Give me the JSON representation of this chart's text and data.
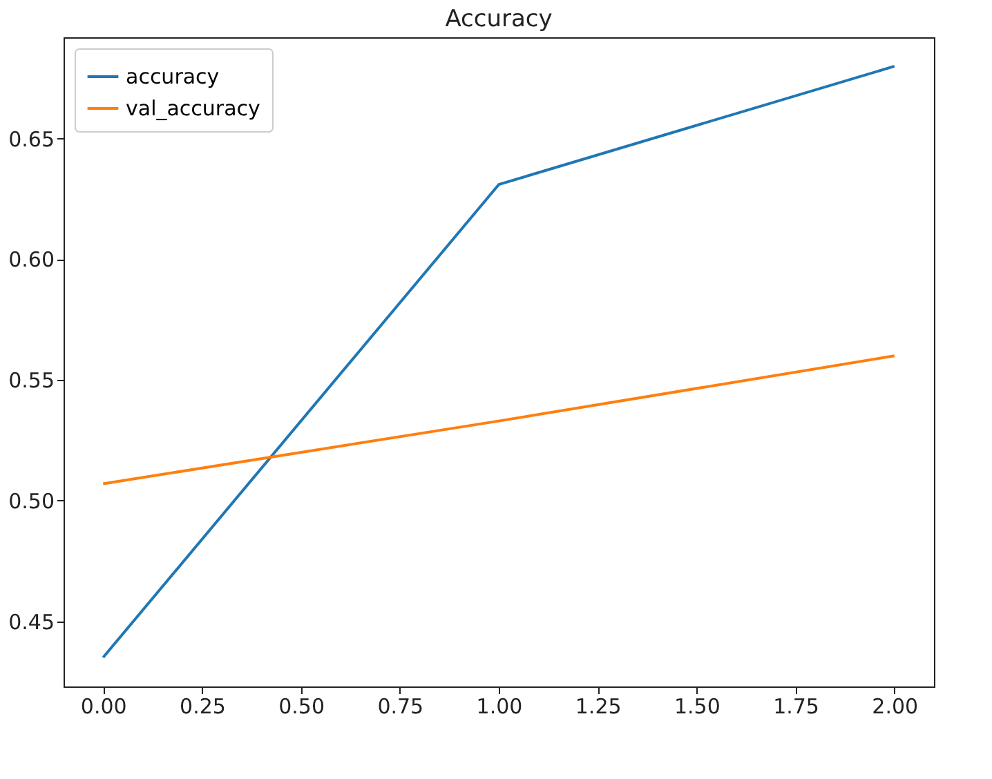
{
  "chart_data": {
    "type": "line",
    "title": "Accuracy",
    "x": [
      0,
      1,
      2
    ],
    "series": [
      {
        "name": "accuracy",
        "color": "#1f77b4",
        "values": [
          0.435,
          0.631,
          0.68
        ]
      },
      {
        "name": "val_accuracy",
        "color": "#ff7f0e",
        "values": [
          0.507,
          0.533,
          0.56
        ]
      }
    ],
    "xlim": [
      -0.1,
      2.1
    ],
    "xticks": [
      {
        "value": 0,
        "label": "0.00"
      },
      {
        "value": 0.25,
        "label": "0.25"
      },
      {
        "value": 0.5,
        "label": "0.50"
      },
      {
        "value": 0.75,
        "label": "0.75"
      },
      {
        "value": 1,
        "label": "1.00"
      },
      {
        "value": 1.25,
        "label": "1.25"
      },
      {
        "value": 1.5,
        "label": "1.50"
      },
      {
        "value": 1.75,
        "label": "1.75"
      },
      {
        "value": 2,
        "label": "2.00"
      }
    ],
    "ylim": [
      0.423,
      0.692
    ],
    "yticks": [
      {
        "value": 0.45,
        "label": "0.45"
      },
      {
        "value": 0.5,
        "label": "0.50"
      },
      {
        "value": 0.55,
        "label": "0.55"
      },
      {
        "value": 0.6,
        "label": "0.60"
      },
      {
        "value": 0.65,
        "label": "0.65"
      }
    ],
    "grid": false,
    "legend": "top left",
    "line_style": "solid",
    "marker": "none"
  }
}
